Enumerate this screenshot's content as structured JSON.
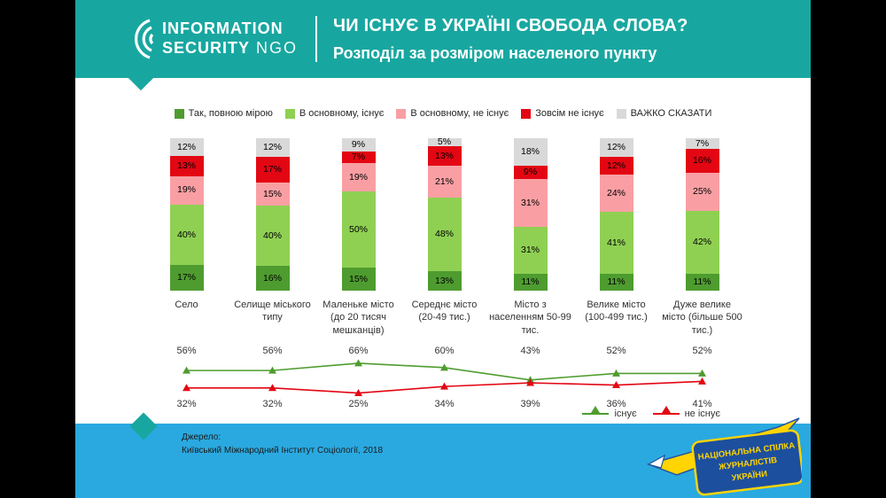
{
  "header": {
    "logo_line1": "INFORMATION",
    "logo_line2": "SECURITY",
    "logo_ngo": "NGO",
    "title": "ЧИ ІСНУЄ В УКРАЇНІ СВОБОДА СЛОВА?",
    "subtitle": "Розподіл за розміром населеного пункту"
  },
  "colors": {
    "teal": "#18a7a0",
    "footer_blue": "#2aa9e0",
    "dark_green": "#4e9c2f",
    "light_green": "#8fd053",
    "pink": "#f99fa4",
    "red": "#e30613",
    "gray": "#d9d9d9"
  },
  "chart_data": {
    "type": "bar",
    "stacked": true,
    "title": "ЧИ ІСНУЄ В УКРАЇНІ СВОБОДА СЛОВА? Розподіл за розміром населеного пункту",
    "categories": [
      "Село",
      "Селище міського типу",
      "Маленьке місто (до 20 тисяч мешканців)",
      "Середнє місто (20-49 тис.)",
      "Місто з населенням 50-99 тис.",
      "Велике місто (100-499 тис.)",
      "Дуже велике місто (більше 500 тис.)"
    ],
    "series": [
      {
        "name": "Так, повною мірою",
        "color": "#4e9c2f",
        "values": [
          17,
          16,
          15,
          13,
          11,
          11,
          11
        ]
      },
      {
        "name": "В основному, існує",
        "color": "#8fd053",
        "values": [
          40,
          40,
          50,
          48,
          31,
          41,
          42
        ]
      },
      {
        "name": "В основному, не існує",
        "color": "#f99fa4",
        "values": [
          19,
          15,
          19,
          21,
          31,
          24,
          25
        ]
      },
      {
        "name": "Зовсім не існує",
        "color": "#e30613",
        "values": [
          13,
          17,
          7,
          13,
          9,
          12,
          16
        ]
      },
      {
        "name": "ВАЖКО СКАЗАТИ",
        "color": "#d9d9d9",
        "values": [
          12,
          12,
          9,
          5,
          18,
          12,
          7
        ]
      }
    ],
    "lines": [
      {
        "name": "існує",
        "color": "#4e9c2f",
        "values": [
          56,
          56,
          66,
          60,
          43,
          52,
          52
        ],
        "label_position": "above"
      },
      {
        "name": "не існує",
        "color": "#e30613",
        "values": [
          32,
          32,
          25,
          34,
          39,
          36,
          41
        ],
        "label_position": "below"
      }
    ],
    "ylim": [
      0,
      100
    ],
    "grid": false,
    "legend_position": "top"
  },
  "footer": {
    "source_label": "Джерело:",
    "source_text": "Київський Міжнародний Інститут Соціології, 2018",
    "badge": {
      "line1": "НАЦІОНАЛЬНА СПІЛКА",
      "line2": "ЖУРНАЛІСТІВ",
      "line3": "УКРАЇНИ"
    }
  }
}
